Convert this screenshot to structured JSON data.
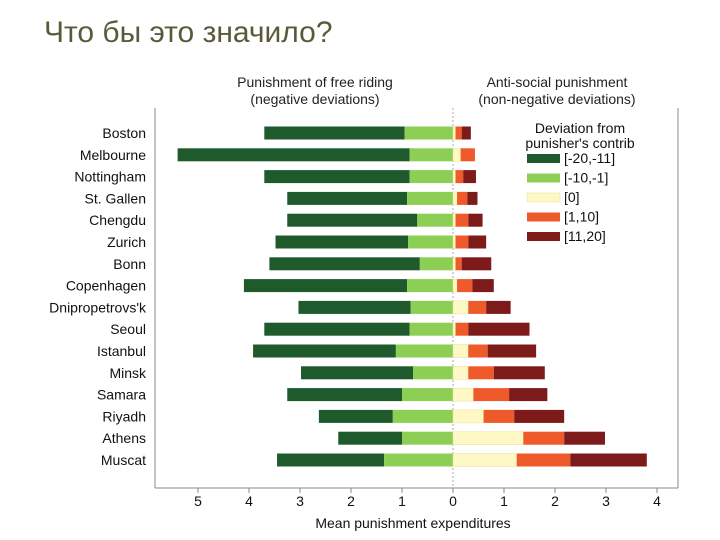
{
  "slide": {
    "title": "Что бы это значило?"
  },
  "colors": {
    "neg_strong": "#1e5a2c",
    "neg_weak": "#8ccf54",
    "zero": "#fdf8c4",
    "pos_weak": "#ef5a2a",
    "pos_strong": "#7d1a1a"
  },
  "chart_data": {
    "type": "bar",
    "orientation": "horizontal-diverging-stacked",
    "headers": {
      "left_line1": "Punishment of free riding",
      "left_line2": "(negative deviations)",
      "right_line1": "Anti-social punishment",
      "right_line2": "(non-negative deviations)"
    },
    "xlabel": "Mean punishment expenditures",
    "xticks": [
      "5",
      "4",
      "3",
      "2",
      "1",
      "0",
      "1",
      "2",
      "3",
      "4"
    ],
    "xlim": [
      -5,
      4
    ],
    "legend": {
      "title_line1": "Deviation from",
      "title_line2": "punisher's contrib",
      "position": "top-right",
      "entries": [
        "[-20,-11]",
        "[-10,-1]",
        "[0]",
        "[1,10]",
        "[11,20]"
      ]
    },
    "categories": [
      "Boston",
      "Melbourne",
      "Nottingham",
      "St. Gallen",
      "Chengdu",
      "Zurich",
      "Bonn",
      "Copenhagen",
      "Dnipropetrovs'k",
      "Seoul",
      "Istanbul",
      "Minsk",
      "Samara",
      "Riyadh",
      "Athens",
      "Muscat"
    ],
    "series": [
      {
        "name": "[-20,-11]",
        "values": [
          -2.75,
          -4.55,
          -2.85,
          -2.35,
          -2.55,
          -2.6,
          -2.95,
          -3.2,
          -2.2,
          -2.85,
          -2.8,
          -2.2,
          -2.25,
          -1.45,
          -1.25,
          -2.1
        ]
      },
      {
        "name": "[-10,-1]",
        "values": [
          -0.95,
          -0.85,
          -0.85,
          -0.9,
          -0.7,
          -0.88,
          -0.65,
          -0.9,
          -0.83,
          -0.85,
          -1.12,
          -0.78,
          -1.0,
          -1.18,
          -1.0,
          -1.35
        ]
      },
      {
        "name": "[0]",
        "values": [
          0.05,
          0.15,
          0.05,
          0.08,
          0.05,
          0.05,
          0.05,
          0.08,
          0.3,
          0.05,
          0.3,
          0.3,
          0.4,
          0.6,
          1.38,
          1.25
        ]
      },
      {
        "name": "[1,10]",
        "values": [
          0.12,
          0.28,
          0.15,
          0.2,
          0.25,
          0.25,
          0.12,
          0.3,
          0.35,
          0.25,
          0.38,
          0.5,
          0.7,
          0.6,
          0.8,
          1.05
        ]
      },
      {
        "name": "[11,20]",
        "values": [
          0.18,
          0.0,
          0.25,
          0.2,
          0.28,
          0.35,
          0.58,
          0.42,
          0.48,
          1.2,
          0.95,
          1.0,
          0.75,
          0.98,
          0.8,
          1.5
        ]
      }
    ]
  }
}
